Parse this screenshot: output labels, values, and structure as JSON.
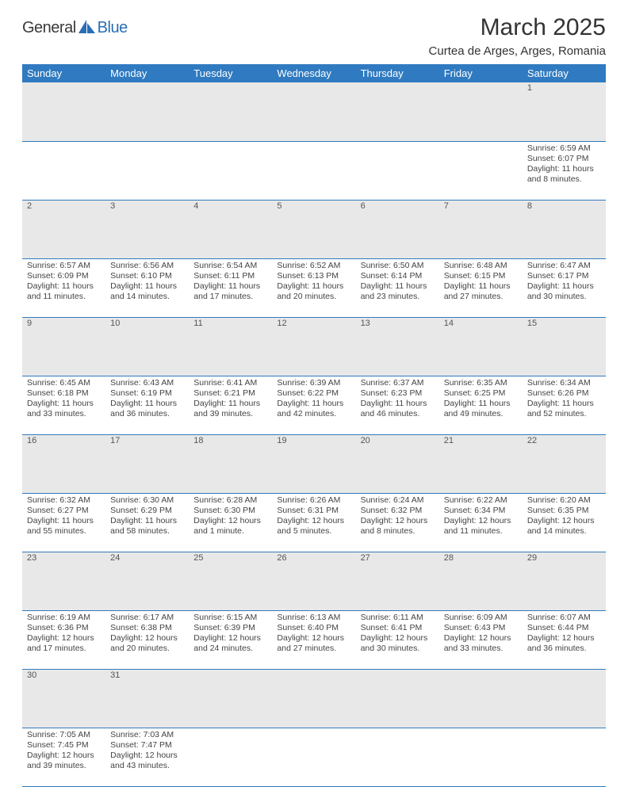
{
  "logo": {
    "text1": "General",
    "text2": "Blue"
  },
  "title": "March 2025",
  "location": "Curtea de Arges, Arges, Romania",
  "colors": {
    "header_bg": "#2f7ac0",
    "header_text": "#ffffff",
    "grid_line": "#2f7ac0",
    "daynum_bg": "#e8e8e8",
    "page_bg": "#ffffff",
    "logo_blue": "#2a6db5"
  },
  "fonts": {
    "title_size_pt": 30,
    "location_size_pt": 15,
    "header_size_pt": 13,
    "cell_size_pt": 10.5
  },
  "calendar": {
    "headers": [
      "Sunday",
      "Monday",
      "Tuesday",
      "Wednesday",
      "Thursday",
      "Friday",
      "Saturday"
    ],
    "weeks": [
      [
        null,
        null,
        null,
        null,
        null,
        null,
        {
          "n": "1",
          "sunrise": "6:59 AM",
          "sunset": "6:07 PM",
          "daylight": "11 hours and 8 minutes."
        }
      ],
      [
        {
          "n": "2",
          "sunrise": "6:57 AM",
          "sunset": "6:09 PM",
          "daylight": "11 hours and 11 minutes."
        },
        {
          "n": "3",
          "sunrise": "6:56 AM",
          "sunset": "6:10 PM",
          "daylight": "11 hours and 14 minutes."
        },
        {
          "n": "4",
          "sunrise": "6:54 AM",
          "sunset": "6:11 PM",
          "daylight": "11 hours and 17 minutes."
        },
        {
          "n": "5",
          "sunrise": "6:52 AM",
          "sunset": "6:13 PM",
          "daylight": "11 hours and 20 minutes."
        },
        {
          "n": "6",
          "sunrise": "6:50 AM",
          "sunset": "6:14 PM",
          "daylight": "11 hours and 23 minutes."
        },
        {
          "n": "7",
          "sunrise": "6:48 AM",
          "sunset": "6:15 PM",
          "daylight": "11 hours and 27 minutes."
        },
        {
          "n": "8",
          "sunrise": "6:47 AM",
          "sunset": "6:17 PM",
          "daylight": "11 hours and 30 minutes."
        }
      ],
      [
        {
          "n": "9",
          "sunrise": "6:45 AM",
          "sunset": "6:18 PM",
          "daylight": "11 hours and 33 minutes."
        },
        {
          "n": "10",
          "sunrise": "6:43 AM",
          "sunset": "6:19 PM",
          "daylight": "11 hours and 36 minutes."
        },
        {
          "n": "11",
          "sunrise": "6:41 AM",
          "sunset": "6:21 PM",
          "daylight": "11 hours and 39 minutes."
        },
        {
          "n": "12",
          "sunrise": "6:39 AM",
          "sunset": "6:22 PM",
          "daylight": "11 hours and 42 minutes."
        },
        {
          "n": "13",
          "sunrise": "6:37 AM",
          "sunset": "6:23 PM",
          "daylight": "11 hours and 46 minutes."
        },
        {
          "n": "14",
          "sunrise": "6:35 AM",
          "sunset": "6:25 PM",
          "daylight": "11 hours and 49 minutes."
        },
        {
          "n": "15",
          "sunrise": "6:34 AM",
          "sunset": "6:26 PM",
          "daylight": "11 hours and 52 minutes."
        }
      ],
      [
        {
          "n": "16",
          "sunrise": "6:32 AM",
          "sunset": "6:27 PM",
          "daylight": "11 hours and 55 minutes."
        },
        {
          "n": "17",
          "sunrise": "6:30 AM",
          "sunset": "6:29 PM",
          "daylight": "11 hours and 58 minutes."
        },
        {
          "n": "18",
          "sunrise": "6:28 AM",
          "sunset": "6:30 PM",
          "daylight": "12 hours and 1 minute."
        },
        {
          "n": "19",
          "sunrise": "6:26 AM",
          "sunset": "6:31 PM",
          "daylight": "12 hours and 5 minutes."
        },
        {
          "n": "20",
          "sunrise": "6:24 AM",
          "sunset": "6:32 PM",
          "daylight": "12 hours and 8 minutes."
        },
        {
          "n": "21",
          "sunrise": "6:22 AM",
          "sunset": "6:34 PM",
          "daylight": "12 hours and 11 minutes."
        },
        {
          "n": "22",
          "sunrise": "6:20 AM",
          "sunset": "6:35 PM",
          "daylight": "12 hours and 14 minutes."
        }
      ],
      [
        {
          "n": "23",
          "sunrise": "6:19 AM",
          "sunset": "6:36 PM",
          "daylight": "12 hours and 17 minutes."
        },
        {
          "n": "24",
          "sunrise": "6:17 AM",
          "sunset": "6:38 PM",
          "daylight": "12 hours and 20 minutes."
        },
        {
          "n": "25",
          "sunrise": "6:15 AM",
          "sunset": "6:39 PM",
          "daylight": "12 hours and 24 minutes."
        },
        {
          "n": "26",
          "sunrise": "6:13 AM",
          "sunset": "6:40 PM",
          "daylight": "12 hours and 27 minutes."
        },
        {
          "n": "27",
          "sunrise": "6:11 AM",
          "sunset": "6:41 PM",
          "daylight": "12 hours and 30 minutes."
        },
        {
          "n": "28",
          "sunrise": "6:09 AM",
          "sunset": "6:43 PM",
          "daylight": "12 hours and 33 minutes."
        },
        {
          "n": "29",
          "sunrise": "6:07 AM",
          "sunset": "6:44 PM",
          "daylight": "12 hours and 36 minutes."
        }
      ],
      [
        {
          "n": "30",
          "sunrise": "7:05 AM",
          "sunset": "7:45 PM",
          "daylight": "12 hours and 39 minutes."
        },
        {
          "n": "31",
          "sunrise": "7:03 AM",
          "sunset": "7:47 PM",
          "daylight": "12 hours and 43 minutes."
        },
        null,
        null,
        null,
        null,
        null
      ]
    ]
  }
}
